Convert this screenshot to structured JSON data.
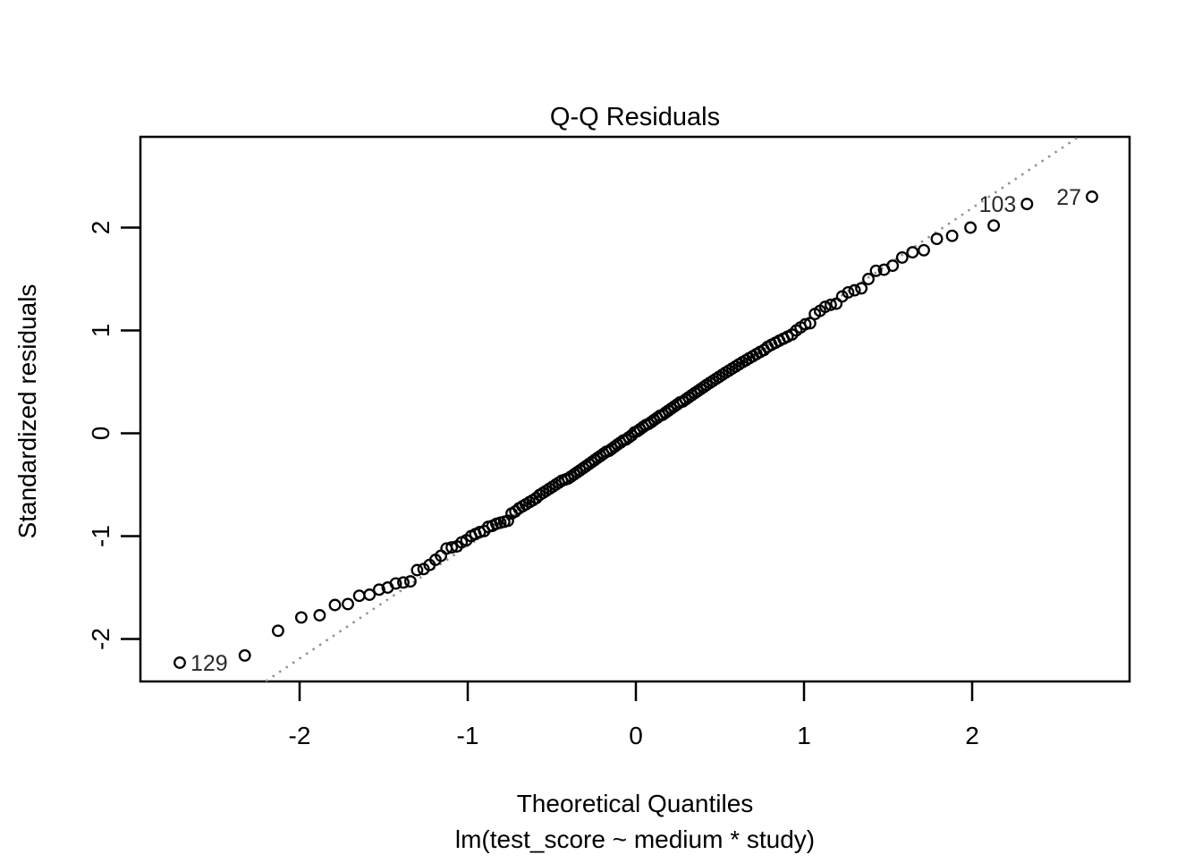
{
  "chart_data": {
    "type": "scatter",
    "title": "Q-Q Residuals",
    "xlabel": "Theoretical Quantiles",
    "model_formula": "lm(test_score ~ medium * study)",
    "ylabel": "Standardized residuals",
    "n_points": 150,
    "x_tick_labels": [
      "-2",
      "-1",
      "0",
      "1",
      "2"
    ],
    "x_tick_values": [
      -2,
      -1,
      0,
      1,
      2
    ],
    "y_tick_labels": [
      "-2",
      "-1",
      "0",
      "1",
      "2"
    ],
    "y_tick_values": [
      -2,
      -1,
      0,
      1,
      2
    ],
    "xlim": [
      -2.95,
      2.94
    ],
    "ylim": [
      -2.41,
      2.88
    ],
    "grid": false,
    "legend": "none",
    "reference_line": {
      "kind": "qqline",
      "slope": 1.095,
      "intercept": 0,
      "line_style": "dotted",
      "color": "#909090"
    },
    "point_style": {
      "marker": "open-circle",
      "stroke_color": "#000000",
      "radius_px": 5.8,
      "stroke_width_px": 2.3
    },
    "colors": {
      "background": "#ffffff",
      "axis": "#000000",
      "tick_label": "#000000",
      "point_label": "#2a2a2a"
    },
    "points": {
      "x": [
        -2.713,
        -2.326,
        -2.128,
        -1.99,
        -1.881,
        -1.79,
        -1.713,
        -1.645,
        -1.584,
        -1.527,
        -1.476,
        -1.428,
        -1.383,
        -1.341,
        -1.301,
        -1.263,
        -1.227,
        -1.192,
        -1.159,
        -1.126,
        -1.095,
        -1.065,
        -1.036,
        -1.008,
        -0.98,
        -0.954,
        -0.928,
        -0.902,
        -0.878,
        -0.853,
        -0.83,
        -0.806,
        -0.783,
        -0.761,
        -0.739,
        -0.717,
        -0.696,
        -0.674,
        -0.654,
        -0.633,
        -0.613,
        -0.593,
        -0.573,
        -0.553,
        -0.534,
        -0.515,
        -0.496,
        -0.477,
        -0.458,
        -0.44,
        -0.421,
        -0.403,
        -0.385,
        -0.367,
        -0.35,
        -0.332,
        -0.314,
        -0.297,
        -0.279,
        -0.262,
        -0.245,
        -0.228,
        -0.21,
        -0.193,
        -0.176,
        -0.159,
        -0.143,
        -0.126,
        -0.109,
        -0.092,
        -0.075,
        -0.059,
        -0.042,
        -0.025,
        -0.008,
        0.008,
        0.025,
        0.042,
        0.059,
        0.075,
        0.092,
        0.109,
        0.126,
        0.143,
        0.159,
        0.176,
        0.193,
        0.21,
        0.228,
        0.245,
        0.262,
        0.279,
        0.297,
        0.314,
        0.332,
        0.35,
        0.367,
        0.385,
        0.403,
        0.421,
        0.44,
        0.458,
        0.477,
        0.496,
        0.515,
        0.534,
        0.553,
        0.573,
        0.593,
        0.613,
        0.633,
        0.654,
        0.674,
        0.696,
        0.717,
        0.739,
        0.761,
        0.783,
        0.806,
        0.83,
        0.853,
        0.878,
        0.902,
        0.928,
        0.954,
        0.98,
        1.008,
        1.036,
        1.065,
        1.095,
        1.126,
        1.159,
        1.192,
        1.227,
        1.263,
        1.301,
        1.341,
        1.383,
        1.428,
        1.476,
        1.527,
        1.584,
        1.645,
        1.713,
        1.79,
        1.881,
        1.99,
        2.128,
        2.326,
        2.713
      ],
      "y": [
        -2.23,
        -2.16,
        -1.92,
        -1.79,
        -1.77,
        -1.67,
        -1.66,
        -1.58,
        -1.57,
        -1.52,
        -1.5,
        -1.46,
        -1.45,
        -1.44,
        -1.33,
        -1.32,
        -1.28,
        -1.23,
        -1.19,
        -1.12,
        -1.11,
        -1.1,
        -1.06,
        -1.04,
        -1.0,
        -0.98,
        -0.96,
        -0.95,
        -0.91,
        -0.9,
        -0.88,
        -0.87,
        -0.86,
        -0.85,
        -0.78,
        -0.76,
        -0.73,
        -0.71,
        -0.69,
        -0.67,
        -0.65,
        -0.63,
        -0.6,
        -0.58,
        -0.56,
        -0.54,
        -0.52,
        -0.5,
        -0.48,
        -0.46,
        -0.45,
        -0.44,
        -0.42,
        -0.4,
        -0.38,
        -0.36,
        -0.34,
        -0.32,
        -0.3,
        -0.28,
        -0.26,
        -0.24,
        -0.22,
        -0.2,
        -0.18,
        -0.17,
        -0.15,
        -0.13,
        -0.11,
        -0.09,
        -0.07,
        -0.06,
        -0.04,
        -0.02,
        0.01,
        0.02,
        0.04,
        0.06,
        0.08,
        0.09,
        0.11,
        0.13,
        0.15,
        0.17,
        0.18,
        0.2,
        0.22,
        0.24,
        0.26,
        0.28,
        0.3,
        0.31,
        0.33,
        0.35,
        0.37,
        0.39,
        0.41,
        0.43,
        0.45,
        0.47,
        0.49,
        0.51,
        0.53,
        0.55,
        0.57,
        0.59,
        0.61,
        0.63,
        0.65,
        0.67,
        0.69,
        0.71,
        0.73,
        0.75,
        0.77,
        0.79,
        0.81,
        0.84,
        0.86,
        0.88,
        0.9,
        0.92,
        0.94,
        0.96,
        1.0,
        1.03,
        1.06,
        1.07,
        1.16,
        1.19,
        1.23,
        1.25,
        1.26,
        1.33,
        1.37,
        1.39,
        1.41,
        1.5,
        1.58,
        1.59,
        1.63,
        1.71,
        1.76,
        1.78,
        1.89,
        1.92,
        2.0,
        2.02,
        2.23,
        2.3
      ]
    },
    "point_labels": [
      {
        "text": "129",
        "x": -2.713,
        "y": -2.23,
        "side": "right"
      },
      {
        "text": "103",
        "x": 2.326,
        "y": 2.23,
        "side": "left"
      },
      {
        "text": "27",
        "x": 2.713,
        "y": 2.3,
        "side": "left"
      }
    ]
  }
}
